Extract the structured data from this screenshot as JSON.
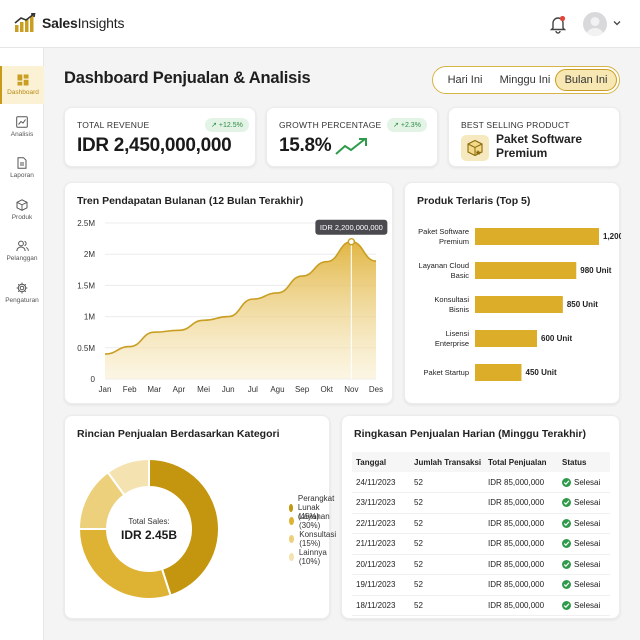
{
  "app": {
    "brand_bold": "Sales",
    "brand_rest": "Insights"
  },
  "sidebar": {
    "items": [
      {
        "label": "Dashboard",
        "icon": "dashboard-icon",
        "active": true
      },
      {
        "label": "Analisis",
        "icon": "analytics-icon",
        "active": false
      },
      {
        "label": "Laporan",
        "icon": "report-icon",
        "active": false
      },
      {
        "label": "Produk",
        "icon": "box-icon",
        "active": false
      },
      {
        "label": "Pelanggan",
        "icon": "users-icon",
        "active": false
      },
      {
        "label": "Pengaturan",
        "icon": "gear-icon",
        "active": false
      }
    ]
  },
  "header": {
    "title": "Dashboard Penjualan & Analisis"
  },
  "range": {
    "options": [
      "Hari Ini",
      "Minggu Ini",
      "Bulan Ini"
    ],
    "active": "Bulan Ini"
  },
  "kpis": {
    "revenue": {
      "label": "TOTAL REVENUE",
      "change": "+12.5%",
      "value": "IDR 2,450,000,000"
    },
    "growth": {
      "label": "GROWTH PERCENTAGE",
      "change": "+2.3%",
      "value": "15.8%"
    },
    "best": {
      "label": "BEST SELLING PRODUCT",
      "line1": "Paket Software",
      "line2": "Premium"
    }
  },
  "colors": {
    "accent": "#c99e22",
    "accent_light": "#f3df9e",
    "success": "#2e9b4a"
  },
  "monthly": {
    "title": "Tren Pendapatan Bulanan (12 Bulan Terakhir)",
    "tooltip": "IDR 2,200,000,000",
    "ticks": [
      "0",
      "0.5M",
      "1M",
      "1.5M",
      "2M",
      "2.5M"
    ]
  },
  "top_products": {
    "title": "Produk Terlaris (Top 5)",
    "items": [
      {
        "line1": "Paket Software",
        "line2": "Premium",
        "label": "1,200 Unit"
      },
      {
        "line1": "Layanan Cloud",
        "line2": "Basic",
        "label": "980 Unit"
      },
      {
        "line1": "Konsultasi",
        "line2": "Bisnis",
        "label": "850 Unit"
      },
      {
        "line1": "Lisensi",
        "line2": "Enterprise",
        "label": "600 Unit"
      },
      {
        "line1": "Paket Startup",
        "line2": "",
        "label": "450 Unit"
      }
    ]
  },
  "category": {
    "title": "Rincian Penjualan Berdasarkan Kategori",
    "center_label": "Total Sales:",
    "center_value": "IDR 2.45B",
    "legend": [
      {
        "label": "Perangkat Lunak (45%)",
        "color": "#c4950f"
      },
      {
        "label": "Layanan (30%)",
        "color": "#deb232"
      },
      {
        "label": "Konsultasi (15%)",
        "color": "#ecd07c"
      },
      {
        "label": "Lainnya (10%)",
        "color": "#f4e3b0"
      }
    ]
  },
  "daily": {
    "title": "Ringkasan Penjualan Harian (Minggu Terakhir)",
    "columns": [
      "Tanggal",
      "Jumlah Transaksi",
      "Total Penjualan",
      "Status"
    ],
    "rows": [
      [
        "24/11/2023",
        "52",
        "IDR 85,000,000",
        "Selesai"
      ],
      [
        "23/11/2023",
        "52",
        "IDR 85,000,000",
        "Selesai"
      ],
      [
        "22/11/2023",
        "52",
        "IDR 85,000,000",
        "Selesai"
      ],
      [
        "21/11/2023",
        "52",
        "IDR 85,000,000",
        "Selesai"
      ],
      [
        "20/11/2023",
        "52",
        "IDR 85,000,000",
        "Selesai"
      ],
      [
        "19/11/2023",
        "52",
        "IDR 85,000,000",
        "Selesai"
      ],
      [
        "18/11/2023",
        "52",
        "IDR 85,000,000",
        "Selesai"
      ]
    ]
  },
  "chart_data": [
    {
      "type": "area",
      "title": "Tren Pendapatan Bulanan (12 Bulan Terakhir)",
      "categories": [
        "Jan",
        "Feb",
        "Mar",
        "Apr",
        "Mei",
        "Jun",
        "Jul",
        "Agu",
        "Sep",
        "Okt",
        "Nov",
        "Des"
      ],
      "values": [
        400000,
        520000,
        750000,
        780000,
        940000,
        1000000,
        1280000,
        1380000,
        1650000,
        1880000,
        2200000,
        1890000
      ],
      "ylim": [
        0,
        2500000
      ],
      "highlight": {
        "category": "Nov",
        "value": 2200000,
        "label": "IDR 2,200,000,000"
      }
    },
    {
      "type": "bar",
      "orientation": "horizontal",
      "title": "Produk Terlaris (Top 5)",
      "categories": [
        "Paket Software Premium",
        "Layanan Cloud Basic",
        "Konsultasi Bisnis",
        "Lisensi Enterprise",
        "Paket Startup"
      ],
      "values": [
        1200,
        980,
        850,
        600,
        450
      ]
    },
    {
      "type": "pie",
      "title": "Rincian Penjualan Berdasarkan Kategori",
      "categories": [
        "Perangkat Lunak",
        "Layanan",
        "Konsultasi",
        "Lainnya"
      ],
      "values": [
        45,
        30,
        15,
        10
      ]
    }
  ]
}
